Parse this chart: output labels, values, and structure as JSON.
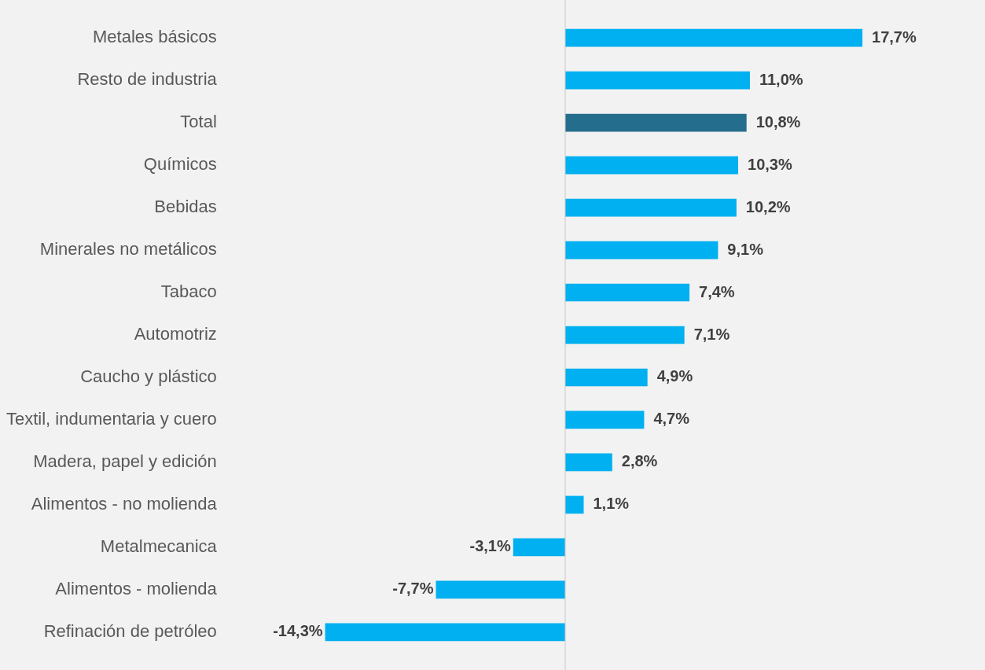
{
  "chart_data": {
    "type": "bar",
    "orientation": "horizontal",
    "categories": [
      "Metales básicos",
      "Resto de industria",
      "Total",
      "Químicos",
      "Bebidas",
      "Minerales no metálicos",
      "Tabaco",
      "Automotriz",
      "Caucho y plástico",
      "Textil, indumentaria y cuero",
      "Madera, papel y edición",
      "Alimentos - no molienda",
      "Metalmecanica",
      "Alimentos - molienda",
      "Refinación de petróleo"
    ],
    "values": [
      17.7,
      11.0,
      10.8,
      10.3,
      10.2,
      9.1,
      7.4,
      7.1,
      4.9,
      4.7,
      2.8,
      1.1,
      -3.1,
      -7.7,
      -14.3
    ],
    "colors": [
      "#00b0f0",
      "#00b0f0",
      "#256d8c",
      "#00b0f0",
      "#00b0f0",
      "#00b0f0",
      "#00b0f0",
      "#00b0f0",
      "#00b0f0",
      "#00b0f0",
      "#00b0f0",
      "#00b0f0",
      "#00b0f0",
      "#00b0f0",
      "#00b0f0"
    ],
    "value_labels": [
      "17,7%",
      "11,0%",
      "10,8%",
      "10,3%",
      "10,2%",
      "9,1%",
      "7,4%",
      "7,1%",
      "4,9%",
      "4,7%",
      "2,8%",
      "1,1%",
      "-3,1%",
      "-7,7%",
      "-14,3%"
    ],
    "legend": false
  }
}
